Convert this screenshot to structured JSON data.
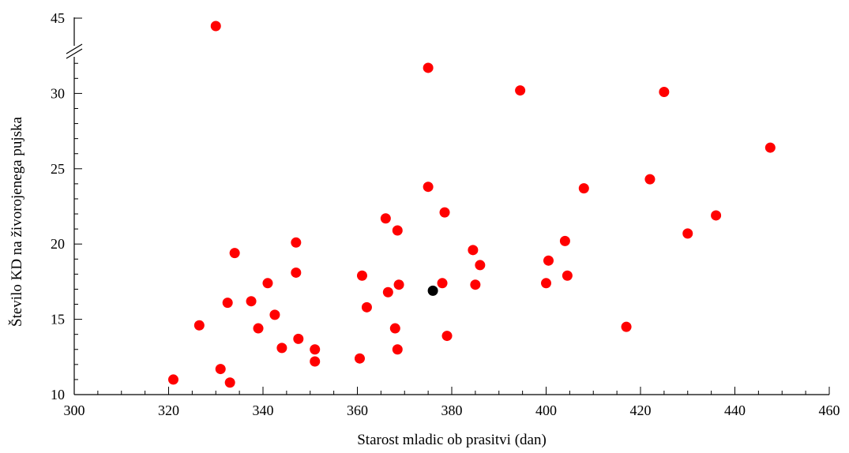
{
  "chart_data": {
    "type": "scatter",
    "xlabel": "Starost mladic ob prasitvi (dan)",
    "ylabel": "Število KD na živorojenega pujska",
    "xlim": [
      300,
      460
    ],
    "ylim": [
      10,
      32
    ],
    "y_axis_break": {
      "below": 32,
      "above_value": 45
    },
    "grid": false,
    "legend": "none",
    "xticks": [
      300,
      320,
      340,
      360,
      380,
      400,
      420,
      440,
      460
    ],
    "yticks": [
      10,
      15,
      20,
      25,
      30
    ],
    "ytick_above_break": 45,
    "colors": {
      "points": "#ff0000",
      "highlight": "#000000",
      "axis": "#000000"
    },
    "series": [
      {
        "color": "#ff0000",
        "points": [
          [
            321,
            11.0
          ],
          [
            326.5,
            14.6
          ],
          [
            331,
            11.7
          ],
          [
            332.5,
            16.1
          ],
          [
            333,
            10.8
          ],
          [
            334,
            19.4
          ],
          [
            337.5,
            16.2
          ],
          [
            339,
            14.4
          ],
          [
            341,
            17.4
          ],
          [
            342.5,
            15.3
          ],
          [
            344,
            13.1
          ],
          [
            347,
            18.1
          ],
          [
            347,
            20.1
          ],
          [
            347.5,
            13.7
          ],
          [
            351,
            13.0
          ],
          [
            351,
            12.2
          ],
          [
            360.5,
            12.4
          ],
          [
            361,
            17.9
          ],
          [
            362,
            15.8
          ],
          [
            366,
            21.7
          ],
          [
            366.5,
            16.8
          ],
          [
            368,
            14.4
          ],
          [
            368.5,
            20.9
          ],
          [
            368.5,
            13.0
          ],
          [
            368.8,
            17.3
          ],
          [
            375,
            31.7
          ],
          [
            375,
            23.8
          ],
          [
            378,
            17.4
          ],
          [
            378.5,
            22.1
          ],
          [
            379,
            13.9
          ],
          [
            384.5,
            19.6
          ],
          [
            385,
            17.3
          ],
          [
            386,
            18.6
          ],
          [
            394.5,
            30.2
          ],
          [
            400,
            17.4
          ],
          [
            400.5,
            18.9
          ],
          [
            404,
            20.2
          ],
          [
            404.5,
            17.9
          ],
          [
            408,
            23.7
          ],
          [
            417,
            14.5
          ],
          [
            422,
            24.3
          ],
          [
            425,
            30.1
          ],
          [
            430,
            20.7
          ],
          [
            436,
            21.9
          ],
          [
            447.5,
            26.4
          ],
          [
            330,
            45
          ]
        ]
      },
      {
        "color": "#000000",
        "points": [
          [
            376,
            16.9
          ]
        ]
      }
    ]
  }
}
